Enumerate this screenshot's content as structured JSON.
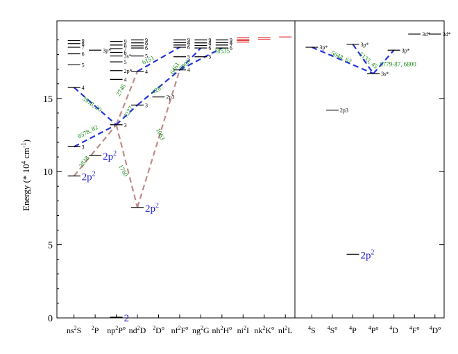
{
  "chart_data": {
    "type": "grotrian-diagram",
    "ylabel_parts": {
      "pre": "Energy (* 10",
      "exp1": "4",
      "mid": " cm",
      "exp2": "-1",
      "post": ")"
    },
    "ylim": [
      0,
      20
    ],
    "yticks": [
      "0",
      "5",
      "10",
      "15"
    ],
    "colors": {
      "axis": "#000000",
      "level": "#000000",
      "blue": "#1f1fd4",
      "green": "#1a8a1a",
      "red": "#e03030",
      "dashed_blue": "#2233dd",
      "dashed_brown": "#c08a8a"
    },
    "left_columns": [
      {
        "sym": "ns",
        "sup": "2",
        "term": "S",
        "sup2": ""
      },
      {
        "sym": "",
        "sup": "2",
        "term": "P",
        "sup2": ""
      },
      {
        "sym": "np",
        "sup": "2",
        "term": "P",
        "sup2": "o"
      },
      {
        "sym": "nd",
        "sup": "2",
        "term": "D",
        "sup2": ""
      },
      {
        "sym": "",
        "sup": "2",
        "term": "D",
        "sup2": "o"
      },
      {
        "sym": "nf",
        "sup": "2",
        "term": "F",
        "sup2": "o"
      },
      {
        "sym": "ng",
        "sup": "2",
        "term": "G",
        "sup2": ""
      },
      {
        "sym": "nh",
        "sup": "2",
        "term": "H",
        "sup2": "o"
      },
      {
        "sym": "ni",
        "sup": "2",
        "term": "I",
        "sup2": ""
      },
      {
        "sym": "nk",
        "sup": "2",
        "term": "K",
        "sup2": "o"
      },
      {
        "sym": "nl",
        "sup": "2",
        "term": "L",
        "sup2": ""
      }
    ],
    "right_columns": [
      {
        "sup": "4",
        "term": "S",
        "sup2": ""
      },
      {
        "sup": "4",
        "term": "S",
        "sup2": "o"
      },
      {
        "sup": "4",
        "term": "P",
        "sup2": ""
      },
      {
        "sup": "4",
        "term": "P",
        "sup2": "o"
      },
      {
        "sup": "4",
        "term": "D",
        "sup2": ""
      },
      {
        "sup": "4",
        "term": "F",
        "sup2": "o"
      },
      {
        "sup": "4",
        "term": "D",
        "sup2": "o"
      }
    ],
    "big_labels": [
      {
        "text": "2",
        "sup": "",
        "col": 2,
        "e": 0.05
      },
      {
        "text": "2p",
        "sup": "2",
        "col": 0,
        "e": 9.7
      },
      {
        "text": "2p",
        "sup": "2",
        "col": 1,
        "e": 11.1
      },
      {
        "text": "2p",
        "sup": "2",
        "col": 3,
        "e": 7.55
      },
      {
        "text": "2p",
        "sup": "2",
        "col": "r2",
        "e": 4.35
      }
    ],
    "level_labels": [
      {
        "text": "3",
        "col": 0,
        "e": 11.7
      },
      {
        "text": "4",
        "col": 0,
        "e": 15.75
      },
      {
        "text": "5",
        "col": 0,
        "e": 17.3
      },
      {
        "text": "6",
        "col": 0,
        "e": 18.05
      },
      {
        "text": "7",
        "col": 0,
        "e": 18.5
      },
      {
        "text": "8",
        "col": 0,
        "e": 18.75
      },
      {
        "text": "9",
        "col": 0,
        "e": 18.95
      },
      {
        "text": "3p*",
        "col": 1,
        "e": 18.3
      },
      {
        "text": "3",
        "col": 2,
        "e": 13.2
      },
      {
        "text": "4",
        "col": 2,
        "e": 16.3
      },
      {
        "text": "5",
        "col": 2,
        "e": 17.5
      },
      {
        "text": "3s*",
        "col": 2,
        "e": 17.9
      },
      {
        "text": "6",
        "col": 2,
        "e": 18.15
      },
      {
        "text": "7",
        "col": 2,
        "e": 18.4
      },
      {
        "text": "8",
        "col": 2,
        "e": 18.65
      },
      {
        "text": "9",
        "col": 2,
        "e": 18.9
      },
      {
        "text": "2p*",
        "col": 2,
        "e": 16.9
      },
      {
        "text": "3",
        "col": 3,
        "e": 14.55
      },
      {
        "text": "4",
        "col": 3,
        "e": 16.85
      },
      {
        "text": "5",
        "col": 3,
        "e": 17.9
      },
      {
        "text": "6",
        "col": 3,
        "e": 18.45
      },
      {
        "text": "7",
        "col": 3,
        "e": 18.6
      },
      {
        "text": "8",
        "col": 3,
        "e": 18.8
      },
      {
        "text": "9",
        "col": 3,
        "e": 19.0
      },
      {
        "text": "2p3",
        "col": 4,
        "e": 15.1
      },
      {
        "text": "4",
        "col": 5,
        "e": 16.95
      },
      {
        "text": "5",
        "col": 5,
        "e": 17.85
      },
      {
        "text": "6",
        "col": 5,
        "e": 18.5
      },
      {
        "text": "7",
        "col": 5,
        "e": 18.65
      },
      {
        "text": "8",
        "col": 5,
        "e": 18.82
      },
      {
        "text": "9",
        "col": 5,
        "e": 19.0
      },
      {
        "text": "5",
        "col": 6,
        "e": 17.85
      },
      {
        "text": "6",
        "col": 6,
        "e": 18.45
      },
      {
        "text": "7",
        "col": 6,
        "e": 18.62
      },
      {
        "text": "8",
        "col": 6,
        "e": 18.8
      },
      {
        "text": "9",
        "col": 6,
        "e": 19.0
      },
      {
        "text": "6",
        "col": 7,
        "e": 18.45
      },
      {
        "text": "7",
        "col": 7,
        "e": 18.65
      },
      {
        "text": "8",
        "col": 7,
        "e": 18.82
      },
      {
        "text": "9",
        "col": 7,
        "e": 19.0
      }
    ],
    "right_level_labels": [
      {
        "text": "3p*",
        "col": 0,
        "e": 18.5
      },
      {
        "text": "2p3",
        "col": 1,
        "e": 14.2
      },
      {
        "text": "3p*",
        "col": 2,
        "e": 18.7
      },
      {
        "text": "3s*",
        "col": 3,
        "e": 16.7
      },
      {
        "text": "3p*",
        "col": 4,
        "e": 18.3
      },
      {
        "text": "3d*",
        "col": 5,
        "e": 19.4
      },
      {
        "text": "3d*",
        "col": 6,
        "e": 19.4
      }
    ],
    "wavelengths": [
      {
        "text": "3918, 20",
        "e": 14.5,
        "col": 0.8,
        "rot": 35
      },
      {
        "text": "6578, 82",
        "e": 12.6,
        "col": 0.7,
        "rot": -28
      },
      {
        "text": "2838",
        "e": 10.6,
        "col": 0.55,
        "rot": -55
      },
      {
        "text": "1760",
        "e": 10.0,
        "col": 2.25,
        "rot": 60
      },
      {
        "text": "2746",
        "e": 15.5,
        "col": 2.3,
        "rot": -60
      },
      {
        "text": "7237",
        "e": 14.0,
        "col": 2.65,
        "rot": -60
      },
      {
        "text": "6151",
        "e": 17.5,
        "col": 3.55,
        "rot": -25
      },
      {
        "text": "4267",
        "e": 15.5,
        "col": 4.0,
        "rot": -30
      },
      {
        "text": "1063",
        "e": 12.5,
        "col": 4.0,
        "rot": 65
      },
      {
        "text": "6461",
        "e": 17.0,
        "col": 4.85,
        "rot": -60
      },
      {
        "text": "9903",
        "e": 17.2,
        "col": 5.3,
        "rot": -45
      },
      {
        "text": "18535",
        "e": 18.1,
        "col": 7.0,
        "rot": 0
      },
      {
        "text": "5648, 62",
        "e": 17.7,
        "col": "r1.4",
        "rot": 25
      },
      {
        "text": "5133, 45",
        "e": 17.5,
        "col": "r2.7",
        "rot": 40
      },
      {
        "text": "6779-87, 6800",
        "e": 17.2,
        "col": "r4.2",
        "rot": 0
      }
    ]
  }
}
